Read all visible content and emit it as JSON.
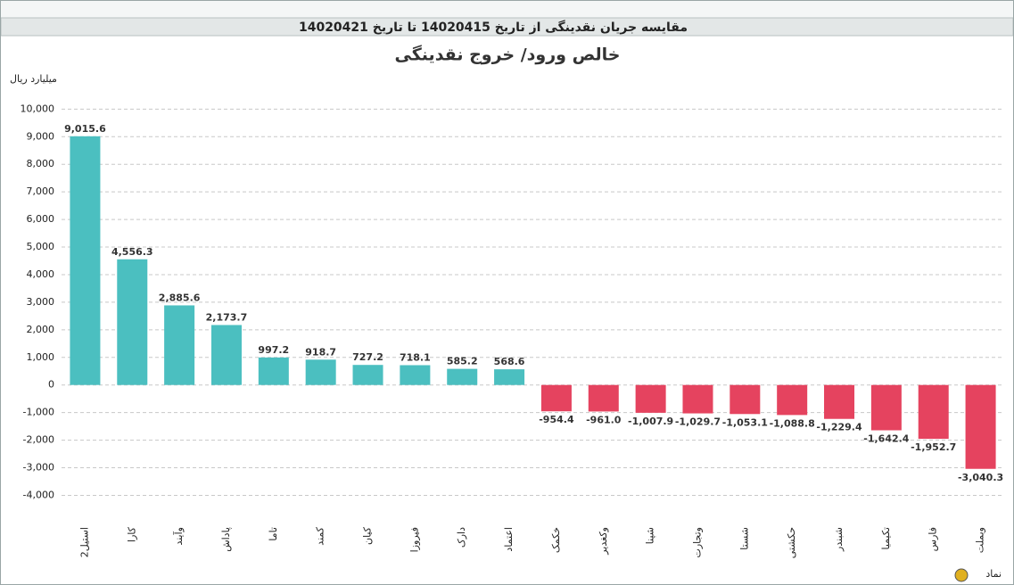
{
  "header": {
    "title": "مقایسه جریان نقدینگی از تاریخ 14020415 تا تاریخ 14020421"
  },
  "chart_data": {
    "type": "bar",
    "title": "خالص ورود/ خروج نقدینگی",
    "y_label": "میلیارد ریال",
    "x_label": "نماد",
    "categories": [
      "استیل2",
      "کارا",
      "وآیند",
      "پاداش",
      "تاما",
      "کمند",
      "کیان",
      "فیروزا",
      "دارک",
      "اعتماد",
      "خکمک",
      "وکغدیر",
      "شپنا",
      "وتجارت",
      "شستا",
      "حکشتی",
      "شبندر",
      "تکیمیا",
      "فارس",
      "وبملت"
    ],
    "values": [
      9015.6,
      4556.3,
      2885.6,
      2173.7,
      997.2,
      918.7,
      727.2,
      718.1,
      585.2,
      568.6,
      -954.4,
      -961.0,
      -1007.9,
      -1029.7,
      -1053.1,
      -1088.8,
      -1229.4,
      -1642.4,
      -1952.7,
      -3040.3
    ],
    "value_labels": [
      "9,015.6",
      "4,556.3",
      "2,885.6",
      "2,173.7",
      "997.2",
      "918.7",
      "727.2",
      "718.1",
      "585.2",
      "568.6",
      "-954.4",
      "-961.0",
      "-1,007.9",
      "-1,029.7",
      "-1,053.1",
      "-1,088.8",
      "-1,229.4",
      "-1,642.4",
      "-1,952.7",
      "-3,040.3"
    ],
    "positive_color": "#4bbfc0",
    "negative_color": "#e5435f",
    "ylim": [
      -4600,
      10400
    ],
    "yticks": [
      {
        "value": -4000,
        "label": "-4,000"
      },
      {
        "value": -3000,
        "label": "-3,000"
      },
      {
        "value": -2000,
        "label": "-2,000"
      },
      {
        "value": -1000,
        "label": "-1,000"
      },
      0,
      {
        "value": 1000,
        "label": "1,000"
      },
      {
        "value": 2000,
        "label": "2,000"
      },
      {
        "value": 3000,
        "label": "3,000"
      },
      {
        "value": 4000,
        "label": "4,000"
      },
      {
        "value": 5000,
        "label": "5,000"
      },
      {
        "value": 6000,
        "label": "6,000"
      },
      {
        "value": 7000,
        "label": "7,000"
      },
      {
        "value": 8000,
        "label": "8,000"
      },
      {
        "value": 9000,
        "label": "9,000"
      },
      {
        "value": 10000,
        "label": "10,000"
      }
    ],
    "grid": true
  }
}
